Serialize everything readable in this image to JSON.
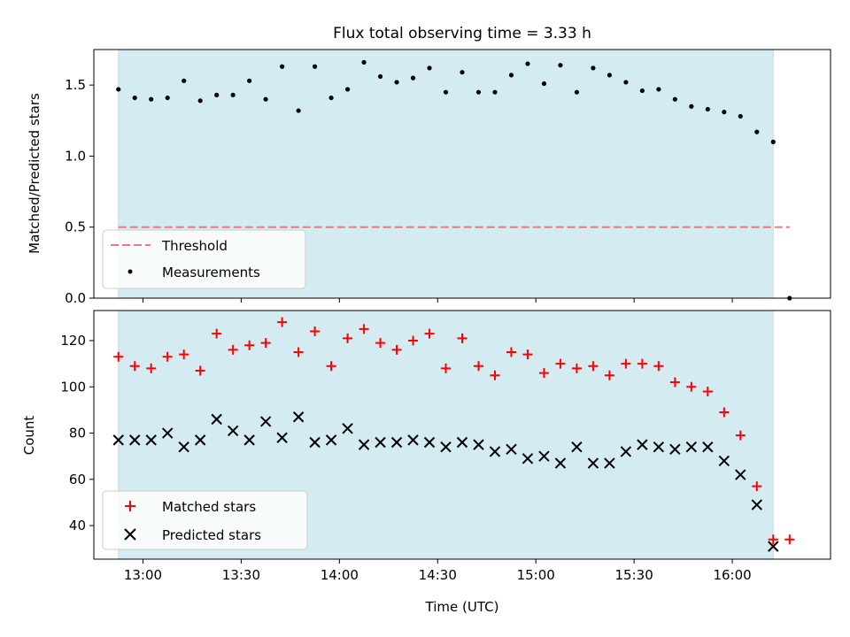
{
  "chart_data": [
    {
      "type": "scatter",
      "title": "Flux total observing time = 3.33 h",
      "ylabel": "Matched/Predicted stars",
      "ylim": [
        0,
        1.75
      ],
      "yticks": [
        "0.0",
        "0.5",
        "1.0",
        "1.5"
      ],
      "ytick_values": [
        0,
        0.5,
        1.0,
        1.5
      ],
      "shaded_span_minutes": [
        772.5,
        972.5
      ],
      "threshold": {
        "name": "Threshold",
        "value": 0.5,
        "color": "#f07878"
      },
      "legend": [
        "Threshold",
        "Measurements"
      ],
      "legend_position": "lower-left",
      "series": [
        {
          "name": "Measurements",
          "color": "#000000",
          "x_minutes": [
            772.5,
            777.5,
            782.5,
            787.5,
            792.5,
            797.5,
            802.5,
            807.5,
            812.5,
            817.5,
            822.5,
            827.5,
            832.5,
            837.5,
            842.5,
            847.5,
            852.5,
            857.5,
            862.5,
            867.5,
            872.5,
            877.5,
            882.5,
            887.5,
            892.5,
            897.5,
            902.5,
            907.5,
            912.5,
            917.5,
            922.5,
            927.5,
            932.5,
            937.5,
            942.5,
            947.5,
            952.5,
            957.5,
            962.5,
            967.5,
            972.5,
            977.5
          ],
          "values": [
            1.47,
            1.41,
            1.4,
            1.41,
            1.53,
            1.39,
            1.43,
            1.43,
            1.53,
            1.4,
            1.63,
            1.32,
            1.63,
            1.41,
            1.47,
            1.66,
            1.56,
            1.52,
            1.55,
            1.62,
            1.45,
            1.59,
            1.45,
            1.45,
            1.57,
            1.65,
            1.51,
            1.64,
            1.45,
            1.62,
            1.57,
            1.52,
            1.46,
            1.47,
            1.4,
            1.35,
            1.33,
            1.31,
            1.28,
            1.17,
            1.1,
            0.0
          ]
        }
      ]
    },
    {
      "type": "scatter",
      "xlabel": "Time (UTC)",
      "ylabel": "Count",
      "ylim": [
        25.5,
        133
      ],
      "yticks": [
        "40",
        "60",
        "80",
        "100",
        "120"
      ],
      "ytick_values": [
        40,
        60,
        80,
        100,
        120
      ],
      "xlim_minutes": [
        765,
        990
      ],
      "xticks": [
        "13:00",
        "13:30",
        "14:00",
        "14:30",
        "15:00",
        "15:30",
        "16:00"
      ],
      "xtick_minutes": [
        780,
        810,
        840,
        870,
        900,
        930,
        960
      ],
      "shaded_span_minutes": [
        772.5,
        972.5
      ],
      "legend": [
        "Matched stars",
        "Predicted stars"
      ],
      "legend_position": "lower-left",
      "series": [
        {
          "name": "Matched stars",
          "marker": "+",
          "color": "#ff0000",
          "x_minutes": [
            772.5,
            777.5,
            782.5,
            787.5,
            792.5,
            797.5,
            802.5,
            807.5,
            812.5,
            817.5,
            822.5,
            827.5,
            832.5,
            837.5,
            842.5,
            847.5,
            852.5,
            857.5,
            862.5,
            867.5,
            872.5,
            877.5,
            882.5,
            887.5,
            892.5,
            897.5,
            902.5,
            907.5,
            912.5,
            917.5,
            922.5,
            927.5,
            932.5,
            937.5,
            942.5,
            947.5,
            952.5,
            957.5,
            962.5,
            967.5,
            972.5,
            977.5
          ],
          "values": [
            113,
            109,
            108,
            113,
            114,
            107,
            123,
            116,
            118,
            119,
            128,
            115,
            124,
            109,
            121,
            125,
            119,
            116,
            120,
            123,
            108,
            121,
            109,
            105,
            115,
            114,
            106,
            110,
            108,
            109,
            105,
            110,
            110,
            109,
            102,
            100,
            98,
            89,
            79,
            57,
            34,
            34
          ]
        },
        {
          "name": "Predicted stars",
          "marker": "x",
          "color": "#000000",
          "x_minutes": [
            772.5,
            777.5,
            782.5,
            787.5,
            792.5,
            797.5,
            802.5,
            807.5,
            812.5,
            817.5,
            822.5,
            827.5,
            832.5,
            837.5,
            842.5,
            847.5,
            852.5,
            857.5,
            862.5,
            867.5,
            872.5,
            877.5,
            882.5,
            887.5,
            892.5,
            897.5,
            902.5,
            907.5,
            912.5,
            917.5,
            922.5,
            927.5,
            932.5,
            937.5,
            942.5,
            947.5,
            952.5,
            957.5,
            962.5,
            967.5,
            972.5
          ],
          "values": [
            77,
            77,
            77,
            80,
            74,
            77,
            86,
            81,
            77,
            85,
            78,
            87,
            76,
            77,
            82,
            75,
            76,
            76,
            77,
            76,
            74,
            76,
            75,
            72,
            73,
            69,
            70,
            67,
            74,
            67,
            67,
            72,
            75,
            74,
            73,
            74,
            74,
            68,
            62,
            49,
            31
          ]
        }
      ]
    }
  ],
  "colors": {
    "shade": "#d4ebf1",
    "shade_edge": "#bcdfe8",
    "threshold": "#f07878",
    "matched": "#ff0000",
    "predicted": "#000000"
  }
}
